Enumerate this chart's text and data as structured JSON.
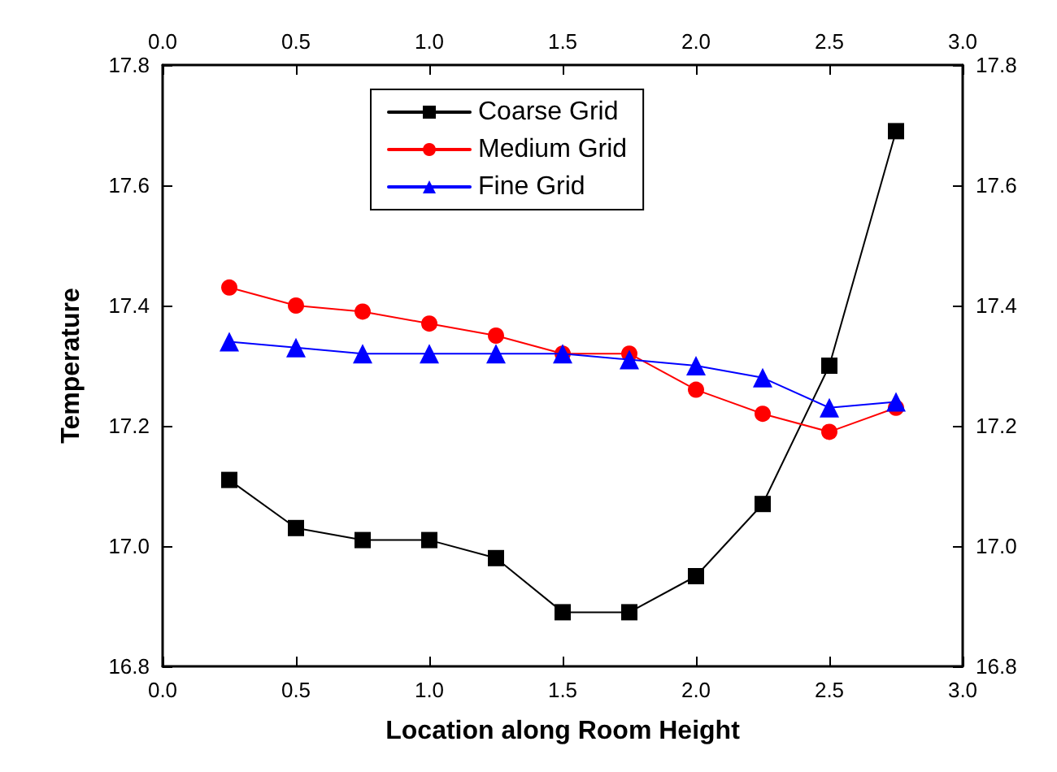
{
  "chart_data": {
    "type": "line",
    "xlabel": "Location along Room Height",
    "ylabel": "Temperature",
    "x": [
      0.25,
      0.5,
      0.75,
      1.0,
      1.25,
      1.5,
      1.75,
      2.0,
      2.25,
      2.5,
      2.75
    ],
    "series": [
      {
        "name": "Coarse Grid",
        "color": "#000000",
        "marker": "square",
        "values": [
          17.11,
          17.03,
          17.01,
          17.01,
          16.98,
          16.89,
          16.89,
          16.95,
          17.07,
          17.3,
          17.69
        ]
      },
      {
        "name": "Medium Grid",
        "color": "#ff0000",
        "marker": "circle",
        "values": [
          17.43,
          17.4,
          17.39,
          17.37,
          17.35,
          17.32,
          17.32,
          17.26,
          17.22,
          17.19,
          17.23
        ]
      },
      {
        "name": "Fine Grid",
        "color": "#0000ff",
        "marker": "triangle",
        "values": [
          17.34,
          17.33,
          17.32,
          17.32,
          17.32,
          17.32,
          17.31,
          17.3,
          17.28,
          17.23,
          17.24
        ]
      }
    ],
    "xlim": [
      0,
      3
    ],
    "xticks": [
      {
        "value": 0,
        "label": "0.0"
      },
      0.5,
      {
        "value": 1,
        "label": "1.0"
      },
      1.5,
      {
        "value": 2,
        "label": "2.0"
      },
      2.5,
      {
        "value": 3,
        "label": "3.0"
      }
    ],
    "x2lim": [
      0,
      3
    ],
    "x2ticks": [
      {
        "value": 0,
        "label": "0.0"
      },
      0.5,
      {
        "value": 1,
        "label": "1.0"
      },
      1.5,
      {
        "value": 2,
        "label": "2.0"
      },
      2.5,
      {
        "value": 3,
        "label": "3.0"
      }
    ],
    "ylim": [
      16.8,
      17.8
    ],
    "yticks": [
      16.8,
      {
        "value": 17,
        "label": "17.0"
      },
      17.2,
      17.4,
      17.6,
      17.8
    ],
    "y2lim": [
      16.8,
      17.8
    ],
    "y2ticks": [
      16.8,
      {
        "value": 17,
        "label": "17.0"
      },
      17.2,
      17.4,
      17.6,
      17.8
    ],
    "legend": "top",
    "grid": false,
    "line_style": "solid"
  }
}
